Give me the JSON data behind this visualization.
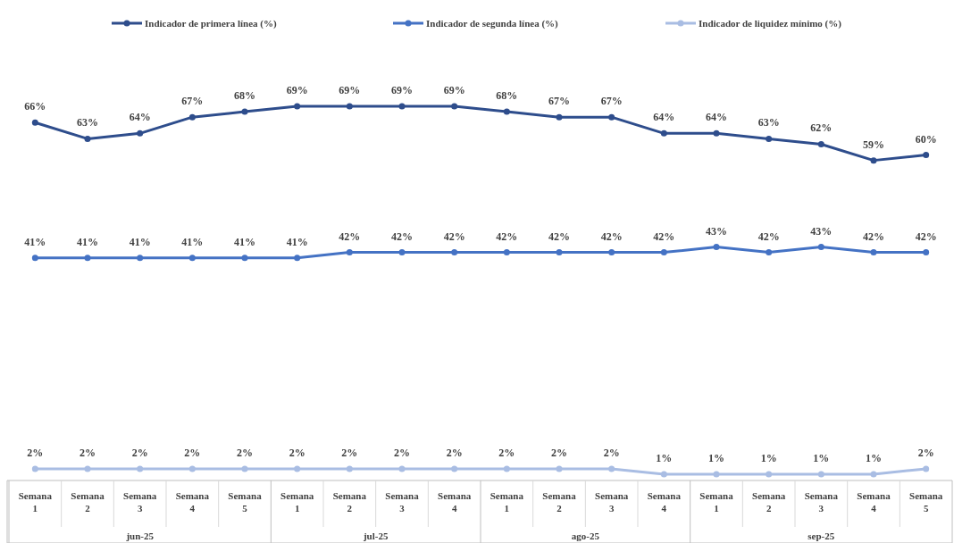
{
  "chart_data": {
    "type": "line",
    "categories": [
      "Semana 1",
      "Semana 2",
      "Semana 3",
      "Semana 4",
      "Semana 5",
      "Semana 1",
      "Semana 2",
      "Semana 3",
      "Semana 4",
      "Semana 1",
      "Semana 2",
      "Semana 3",
      "Semana 4",
      "Semana 1",
      "Semana 2",
      "Semana 3",
      "Semana 4",
      "Semana 5"
    ],
    "series": [
      {
        "name": "Indicador de primera línea (%)",
        "color": "#2e4d8c",
        "values": [
          66,
          63,
          64,
          67,
          68,
          69,
          69,
          69,
          69,
          68,
          67,
          67,
          64,
          64,
          63,
          62,
          59,
          60
        ],
        "value_labels": [
          "66%",
          "63%",
          "64%",
          "67%",
          "68%",
          "69%",
          "69%",
          "69%",
          "69%",
          "68%",
          "67%",
          "67%",
          "64%",
          "64%",
          "63%",
          "62%",
          "59%",
          "60%"
        ]
      },
      {
        "name": "Indicador de segunda línea (%)",
        "color": "#4472c4",
        "values": [
          41,
          41,
          41,
          41,
          41,
          41,
          42,
          42,
          42,
          42,
          42,
          42,
          42,
          43,
          42,
          43,
          42,
          42
        ],
        "value_labels": [
          "41%",
          "41%",
          "41%",
          "41%",
          "41%",
          "41%",
          "42%",
          "42%",
          "42%",
          "42%",
          "42%",
          "42%",
          "42%",
          "43%",
          "42%",
          "43%",
          "42%",
          "42%"
        ]
      },
      {
        "name": "Indicador de liquidez mínimo (%)",
        "color": "#a9bde3",
        "values": [
          2,
          2,
          2,
          2,
          2,
          2,
          2,
          2,
          2,
          2,
          2,
          2,
          1,
          1,
          1,
          1,
          1,
          2
        ],
        "value_labels": [
          "2%",
          "2%",
          "2%",
          "2%",
          "2%",
          "2%",
          "2%",
          "2%",
          "2%",
          "2%",
          "2%",
          "2%",
          "1%",
          "1%",
          "1%",
          "1%",
          "1%",
          "2%"
        ]
      }
    ],
    "annotations": [
      "jun-25",
      "jul-25",
      "ago-25",
      "sep-25"
    ],
    "tick_labels": "x",
    "legend": "top",
    "marker": "circle",
    "line_style": "solid"
  }
}
